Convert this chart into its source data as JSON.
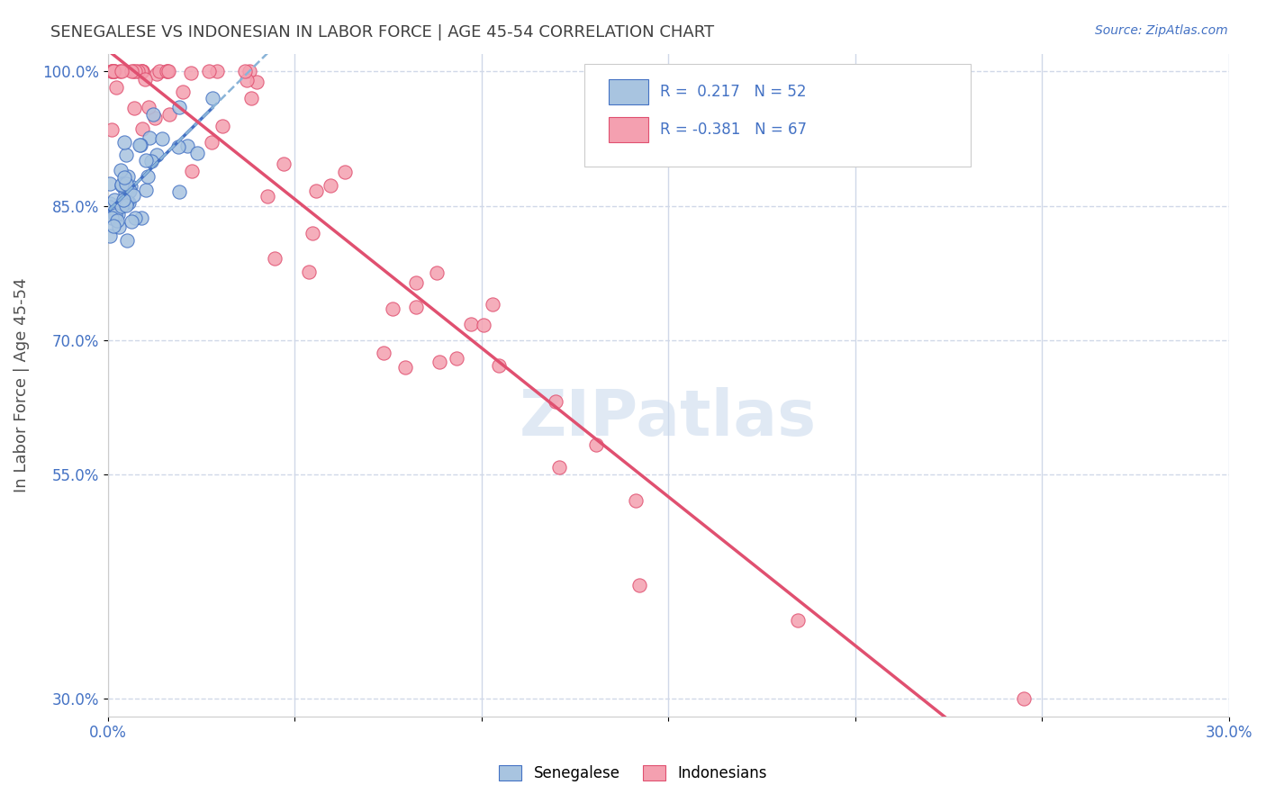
{
  "title": "SENEGALESE VS INDONESIAN IN LABOR FORCE | AGE 45-54 CORRELATION CHART",
  "source": "Source: ZipAtlas.com",
  "ylabel": "In Labor Force | Age 45-54",
  "watermark": "ZIPatlas",
  "xlim": [
    0.0,
    0.3
  ],
  "ylim": [
    0.28,
    1.02
  ],
  "y_ticks": [
    0.3,
    0.55,
    0.7,
    0.85,
    1.0
  ],
  "y_tick_labels": [
    "30.0%",
    "55.0%",
    "70.0%",
    "85.0%",
    "100.0%"
  ],
  "x_tick_vals": [
    0.0,
    0.05,
    0.1,
    0.15,
    0.2,
    0.25,
    0.3
  ],
  "x_tick_labels": [
    "0.0%",
    "",
    "",
    "",
    "",
    "",
    "30.0%"
  ],
  "senegalese_R": 0.217,
  "senegalese_N": 52,
  "indonesian_R": -0.381,
  "indonesian_N": 67,
  "legend_labels": [
    "Senegalese",
    "Indonesians"
  ],
  "scatter_blue_color": "#a8c4e0",
  "scatter_pink_color": "#f4a0b0",
  "line_blue_color": "#4472c4",
  "line_pink_color": "#e05070",
  "trend_blue_dash_color": "#8ab4d8",
  "background_color": "#ffffff",
  "grid_color": "#d0d8e8",
  "tick_color": "#4472c4",
  "title_color": "#404040"
}
